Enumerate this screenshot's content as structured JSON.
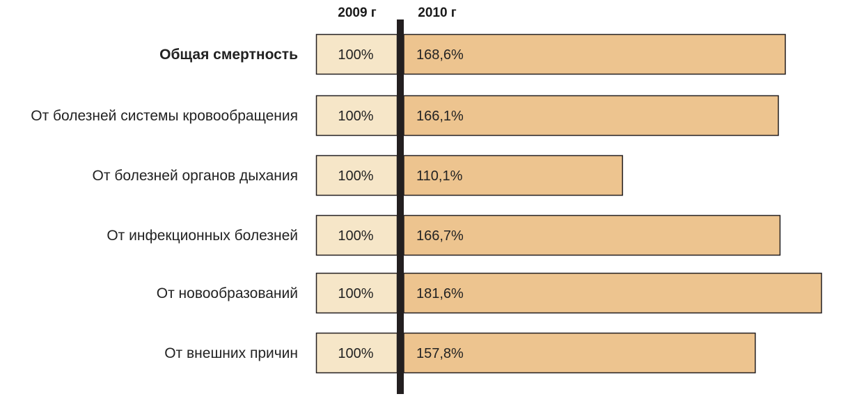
{
  "chart_data": {
    "type": "bar",
    "xlabel": "",
    "ylabel": "",
    "categories": [
      "Общая смертность",
      "От болезней системы кровообращения",
      "От болезней органов дыхания",
      "От инфекционных болезней",
      "От новообразований",
      "От внешних причин"
    ],
    "bold_categories": [
      "Общая смертность"
    ],
    "series": [
      {
        "name": "2009 г",
        "values": [
          100,
          100,
          100,
          100,
          100,
          100
        ],
        "labels": [
          "100%",
          "100%",
          "100%",
          "100%",
          "100%",
          "100%"
        ],
        "color": "#f6e6c8"
      },
      {
        "name": "2010 г",
        "values": [
          168.6,
          166.1,
          110.1,
          166.7,
          181.6,
          157.8
        ],
        "labels": [
          "168,6%",
          "166,1%",
          "110,1%",
          "166,7%",
          "181,6%",
          "157,8%"
        ],
        "color": "#edc48f"
      }
    ],
    "xlim": [
      0,
      181.6
    ],
    "grid": false,
    "divider_color": "#231f20",
    "border_color": "#231f20"
  }
}
